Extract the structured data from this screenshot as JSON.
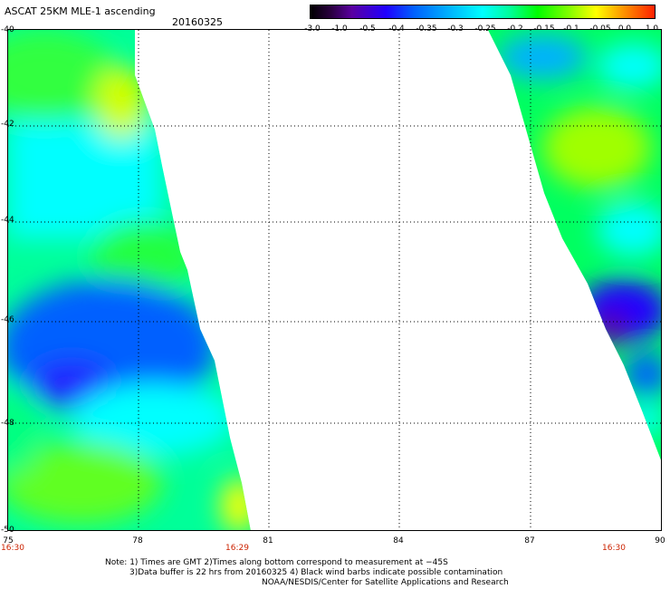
{
  "header": {
    "title": "ASCAT 25KM MLE-1 ascending",
    "date": "20160325"
  },
  "colorbar": {
    "ticks": [
      "-3.0",
      "-1.0",
      "-0.5",
      "-0.4",
      "-0.35",
      "-0.3",
      "-0.25",
      "-0.2",
      "-0.15",
      "-0.1",
      "-0.05",
      "0.0",
      "1.0"
    ],
    "colors": [
      "#000000",
      "#5a00a0",
      "#2000ff",
      "#0060ff",
      "#00b0ff",
      "#00ffff",
      "#00ff99",
      "#00ff00",
      "#80ff00",
      "#ffff00",
      "#ffa000",
      "#ff2000"
    ]
  },
  "axes": {
    "y_labels": [
      "-40",
      "-42",
      "-44",
      "-46",
      "-48",
      "-50"
    ],
    "x_labels": [
      "75",
      "78",
      "81",
      "84",
      "87",
      "90"
    ],
    "time_labels": [
      "16:30",
      "16:29",
      "16:30"
    ]
  },
  "notes": {
    "line1": "Note: 1) Times are GMT 2)Times along bottom correspond to measurement at −45S",
    "line2": "3)Data buffer is 22 hrs from 20160325 4) Black wind barbs indicate possible contamination",
    "line3": "NOAA/NESDIS/Center for Satellite Applications and Research"
  }
}
